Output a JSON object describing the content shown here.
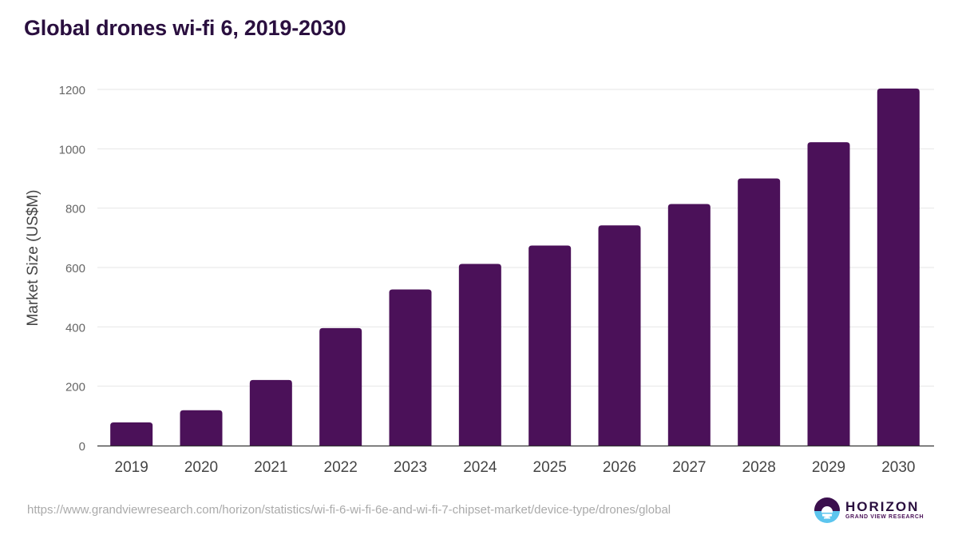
{
  "title": "Global drones wi-fi 6, 2019-2030",
  "source_url": "https://www.grandviewresearch.com/horizon/statistics/wi-fi-6-wi-fi-6e-and-wi-fi-7-chipset-market/device-type/drones/global",
  "logo": {
    "name": "HORIZON",
    "subtitle": "GRAND VIEW RESEARCH",
    "icon": "horizon-logo-icon"
  },
  "colors": {
    "bar": "#4b1159",
    "title": "#2a0f3f",
    "grid": "#e6e6e6",
    "axis": "#333333"
  },
  "chart_data": {
    "type": "bar",
    "title": "Global drones wi-fi 6, 2019-2030",
    "xlabel": "",
    "ylabel": "Market Size (US$M)",
    "categories": [
      "2019",
      "2020",
      "2021",
      "2022",
      "2023",
      "2024",
      "2025",
      "2026",
      "2027",
      "2028",
      "2029",
      "2030"
    ],
    "values": [
      78,
      119,
      221,
      396,
      526,
      612,
      674,
      742,
      814,
      900,
      1022,
      1203
    ],
    "ylim": [
      0,
      1200
    ],
    "yticks": [
      0,
      200,
      400,
      600,
      800,
      1000,
      1200
    ],
    "grid": true,
    "legend": "none"
  }
}
